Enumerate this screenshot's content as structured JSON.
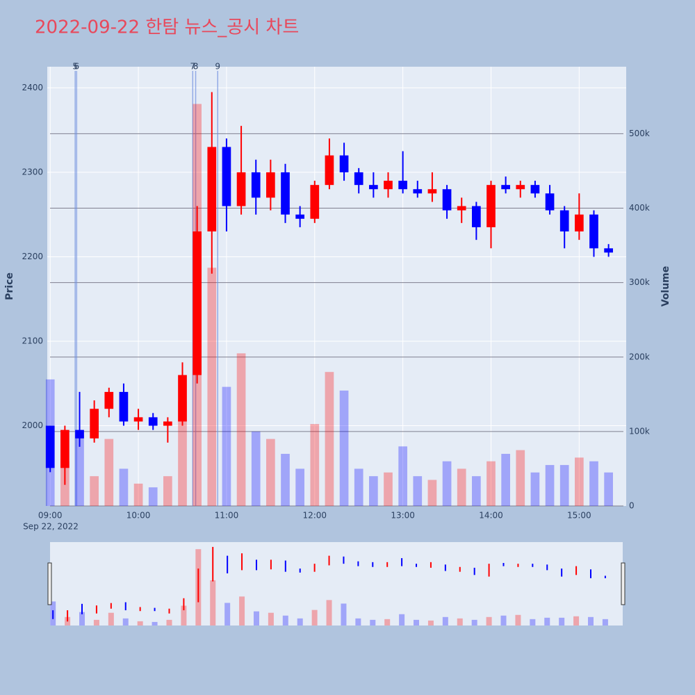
{
  "chart_data": {
    "type": "candlestick",
    "title": "2022-09-22 한탐 뉴스_공시 차트",
    "y_title": "Price",
    "y2_title": "Volume",
    "x_date_label": "Sep 22, 2022",
    "x": [
      "09:00",
      "09:10",
      "09:20",
      "09:30",
      "09:40",
      "09:50",
      "10:00",
      "10:10",
      "10:20",
      "10:30",
      "10:40",
      "10:50",
      "11:00",
      "11:10",
      "11:20",
      "11:30",
      "11:40",
      "11:50",
      "12:00",
      "12:10",
      "12:20",
      "12:30",
      "12:40",
      "12:50",
      "13:00",
      "13:10",
      "13:20",
      "13:30",
      "13:40",
      "13:50",
      "14:00",
      "14:10",
      "14:20",
      "14:30",
      "14:40",
      "14:50",
      "15:00",
      "15:10",
      "15:20"
    ],
    "open": [
      2000,
      1950,
      1995,
      1985,
      2020,
      2040,
      2005,
      2010,
      2000,
      2005,
      2060,
      2230,
      2330,
      2260,
      2300,
      2270,
      2300,
      2250,
      2245,
      2285,
      2320,
      2300,
      2285,
      2280,
      2290,
      2280,
      2275,
      2280,
      2255,
      2260,
      2235,
      2285,
      2280,
      2285,
      2275,
      2255,
      2230,
      2250,
      2210
    ],
    "high": [
      2000,
      2000,
      2040,
      2030,
      2045,
      2050,
      2020,
      2015,
      2010,
      2075,
      2260,
      2395,
      2340,
      2355,
      2315,
      2315,
      2310,
      2260,
      2290,
      2340,
      2335,
      2305,
      2300,
      2300,
      2325,
      2290,
      2300,
      2285,
      2270,
      2265,
      2290,
      2295,
      2290,
      2290,
      2285,
      2260,
      2275,
      2255,
      2215
    ],
    "low": [
      1945,
      1930,
      1975,
      1980,
      2010,
      2000,
      1995,
      1995,
      1980,
      2000,
      2050,
      2180,
      2230,
      2250,
      2250,
      2255,
      2240,
      2235,
      2240,
      2280,
      2290,
      2275,
      2270,
      2270,
      2275,
      2270,
      2265,
      2245,
      2240,
      2220,
      2210,
      2275,
      2270,
      2270,
      2250,
      2210,
      2220,
      2200,
      2200
    ],
    "close": [
      1950,
      1995,
      1985,
      2020,
      2040,
      2005,
      2010,
      2000,
      2005,
      2060,
      2230,
      2330,
      2260,
      2300,
      2270,
      2300,
      2250,
      2245,
      2285,
      2320,
      2300,
      2285,
      2280,
      2290,
      2280,
      2275,
      2280,
      2255,
      2260,
      2235,
      2285,
      2280,
      2285,
      2275,
      2255,
      2230,
      2250,
      2210,
      2205
    ],
    "volume": [
      170000,
      60000,
      95000,
      40000,
      90000,
      50000,
      30000,
      25000,
      40000,
      140000,
      540000,
      320000,
      160000,
      205000,
      100000,
      90000,
      70000,
      50000,
      110000,
      180000,
      155000,
      50000,
      40000,
      45000,
      80000,
      40000,
      35000,
      60000,
      50000,
      40000,
      60000,
      70000,
      75000,
      45000,
      55000,
      55000,
      65000,
      60000,
      45000
    ],
    "increasing_color": "#ff0000",
    "decreasing_color": "#0000ff",
    "xlim": [
      "08:58",
      "15:32"
    ],
    "xticks": [
      "09:00",
      "10:00",
      "11:00",
      "12:00",
      "13:00",
      "14:00",
      "15:00"
    ],
    "ylim": [
      1905,
      2425
    ],
    "yticks": [
      2000,
      2100,
      2200,
      2300,
      2400
    ],
    "y2lim": [
      0,
      590000
    ],
    "y2ticks": [
      0,
      {
        "value": 100000,
        "label": "100k"
      },
      {
        "value": 200000,
        "label": "200k"
      },
      {
        "value": 300000,
        "label": "300k"
      },
      {
        "value": 400000,
        "label": "400k"
      },
      {
        "value": 500000,
        "label": "500k"
      }
    ],
    "annotations": [
      {
        "x": "09:17",
        "label": "5"
      },
      {
        "x": "09:18",
        "label": "6"
      },
      {
        "x": "10:37",
        "label": "7"
      },
      {
        "x": "10:39",
        "label": "8"
      },
      {
        "x": "10:54",
        "label": "9"
      }
    ],
    "grid": true,
    "rangeslider": true
  }
}
